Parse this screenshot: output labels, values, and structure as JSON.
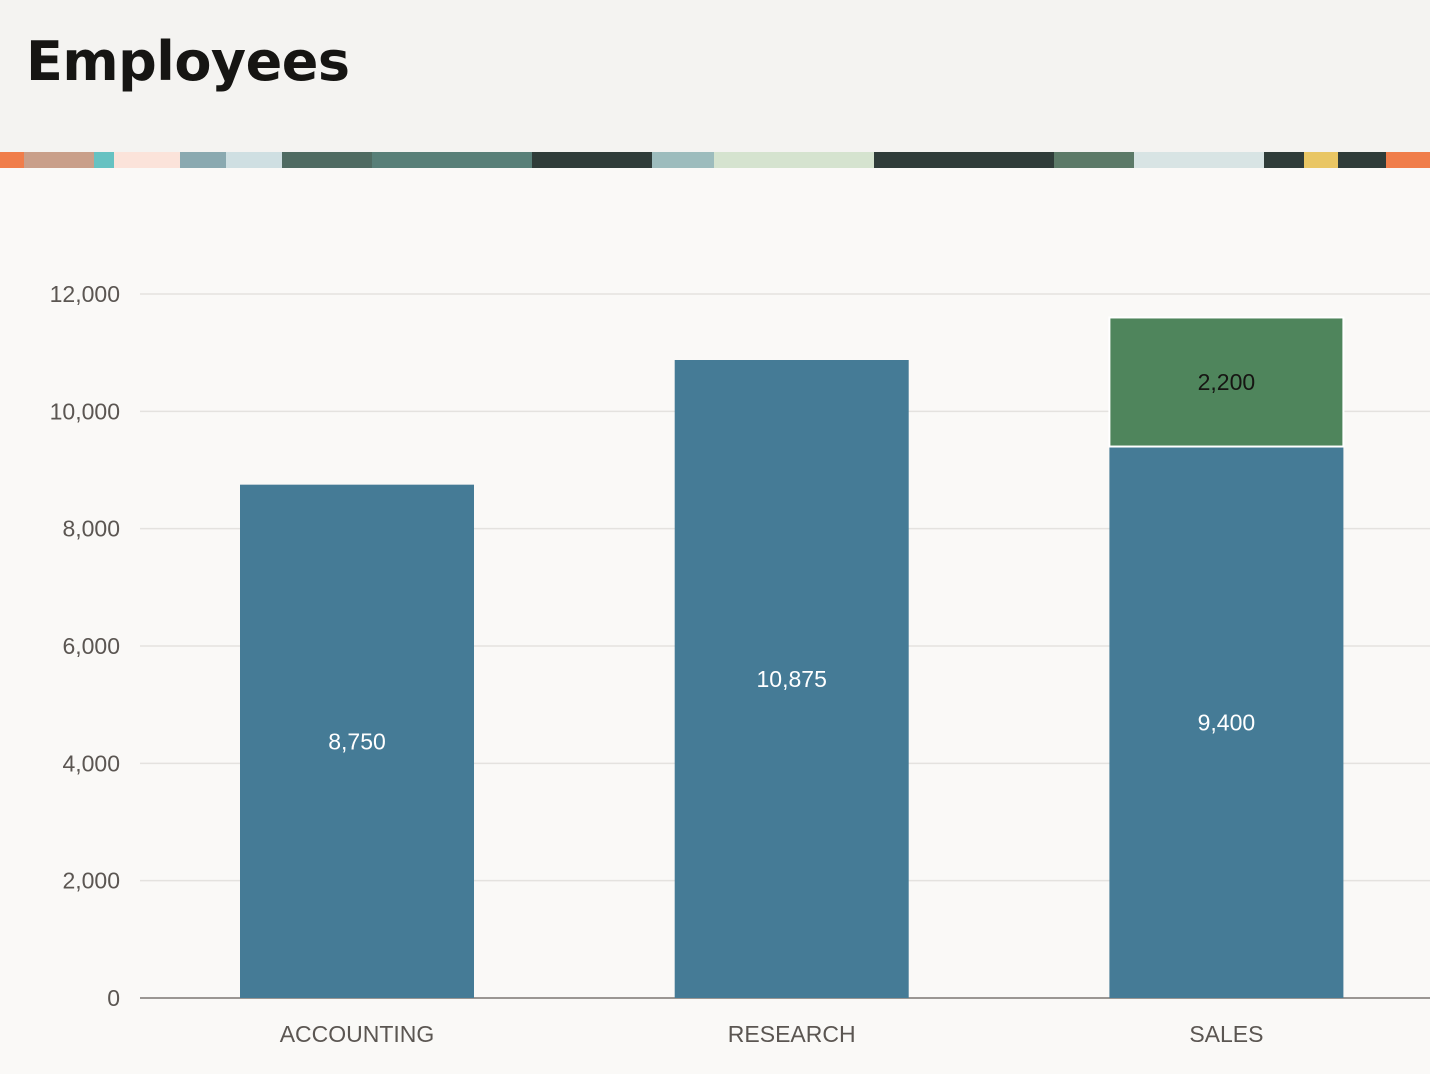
{
  "header": {
    "title": "Employees"
  },
  "colors": {
    "series_primary": "#457b96",
    "series_secondary": "#4f855c",
    "label_light": "#ffffff",
    "label_dark": "#161513"
  },
  "chart_data": {
    "type": "bar",
    "stacked": true,
    "categories": [
      "ACCOUNTING",
      "RESEARCH",
      "SALES"
    ],
    "series": [
      {
        "values": [
          8750,
          10875,
          9400
        ],
        "labels": [
          "8,750",
          "10,875",
          "9,400"
        ],
        "color": "#457b96"
      },
      {
        "values": [
          0,
          0,
          2200
        ],
        "labels": [
          "",
          "",
          "2,200"
        ],
        "color": "#4f855c"
      }
    ],
    "yticks": [
      0,
      2000,
      4000,
      6000,
      8000,
      10000,
      12000
    ],
    "ytick_labels": [
      "0",
      "2,000",
      "4,000",
      "6,000",
      "8,000",
      "10,000",
      "12,000"
    ],
    "ylim": [
      0,
      12000
    ],
    "grid": true,
    "legend": "none",
    "title": "",
    "xlabel": "",
    "ylabel": ""
  }
}
